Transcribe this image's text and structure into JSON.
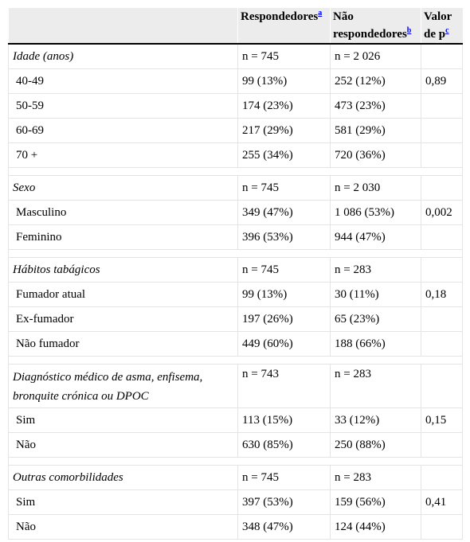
{
  "header": {
    "col1": "",
    "col2": "Respondedores",
    "col2_note": "a",
    "col3_line1": "Não",
    "col3_line2": "respondedores",
    "col3_note": "b",
    "col4_line1": "Valor",
    "col4_line2": "de p",
    "col4_note": "c"
  },
  "sections": [
    {
      "title": "Idade (anos)",
      "n_resp": "n = 745",
      "n_nonresp": "n = 2 026",
      "rows": [
        {
          "label": "40-49",
          "resp": "99 (13%)",
          "nonresp": "252 (12%)",
          "p": "0,89"
        },
        {
          "label": "50-59",
          "resp": "174 (23%)",
          "nonresp": "473 (23%)",
          "p": ""
        },
        {
          "label": "60-69",
          "resp": "217 (29%)",
          "nonresp": "581 (29%)",
          "p": ""
        },
        {
          "label": "70 +",
          "resp": "255 (34%)",
          "nonresp": "720 (36%)",
          "p": ""
        }
      ]
    },
    {
      "title": "Sexo",
      "n_resp": "n = 745",
      "n_nonresp": "n = 2 030",
      "rows": [
        {
          "label": "Masculino",
          "resp": "349 (47%)",
          "nonresp": "1 086 (53%)",
          "p": "0,002"
        },
        {
          "label": "Feminino",
          "resp": "396 (53%)",
          "nonresp": "944 (47%)",
          "p": ""
        }
      ]
    },
    {
      "title": "Hábitos tabágicos",
      "n_resp": "n = 745",
      "n_nonresp": "n = 283",
      "rows": [
        {
          "label": "Fumador atual",
          "resp": "99 (13%)",
          "nonresp": "30 (11%)",
          "p": "0,18"
        },
        {
          "label": "Ex-fumador",
          "resp": "197 (26%)",
          "nonresp": "65 (23%)",
          "p": ""
        },
        {
          "label": "Não fumador",
          "resp": "449 (60%)",
          "nonresp": "188 (66%)",
          "p": ""
        }
      ]
    },
    {
      "title": "Diagnóstico médico de asma, enfisema, bronquite crónica ou DPOC",
      "n_resp": "n = 743",
      "n_nonresp": "n = 283",
      "wrap": true,
      "rows": [
        {
          "label": "Sim",
          "resp": "113 (15%)",
          "nonresp": "33 (12%)",
          "p": "0,15"
        },
        {
          "label": "Não",
          "resp": "630 (85%)",
          "nonresp": "250 (88%)",
          "p": ""
        }
      ]
    },
    {
      "title": "Outras comorbilidades",
      "n_resp": "n = 745",
      "n_nonresp": "n = 283",
      "rows": [
        {
          "label": "Sim",
          "resp": "397 (53%)",
          "nonresp": "159 (56%)",
          "p": "0,41"
        },
        {
          "label": "Não",
          "resp": "348 (47%)",
          "nonresp": "124 (44%)",
          "p": ""
        }
      ]
    }
  ]
}
